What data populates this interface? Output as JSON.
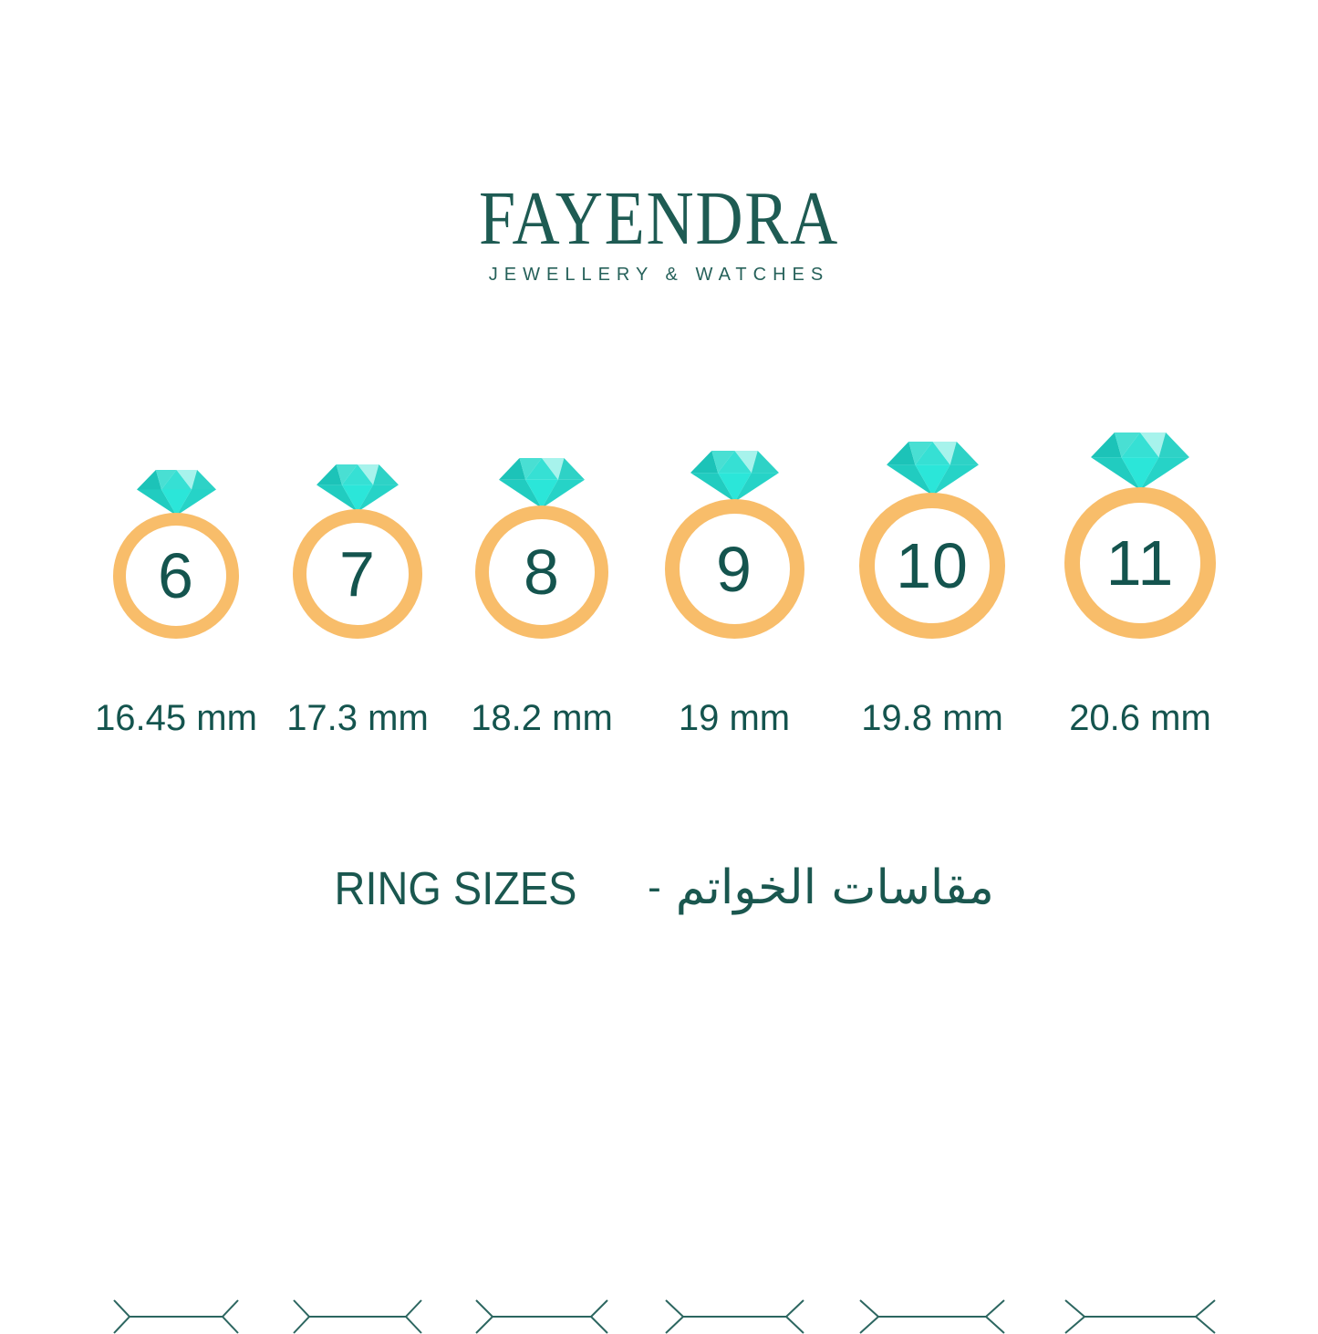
{
  "brand": {
    "name": "FAYENDRA",
    "tagline": "JEWELLERY & WATCHES"
  },
  "rings": [
    {
      "size": "6",
      "diameter_mm": 16.45,
      "diameter_label": "16.45 mm"
    },
    {
      "size": "7",
      "diameter_mm": 17.3,
      "diameter_label": "17.3 mm"
    },
    {
      "size": "8",
      "diameter_mm": 18.2,
      "diameter_label": "18.2 mm"
    },
    {
      "size": "9",
      "diameter_mm": 19,
      "diameter_label": "19 mm"
    },
    {
      "size": "10",
      "diameter_mm": 19.8,
      "diameter_label": "19.8 mm"
    },
    {
      "size": "11",
      "diameter_mm": 20.6,
      "diameter_label": "20.6 mm"
    }
  ],
  "footer_title": {
    "english": "RING SIZES",
    "separator": "-",
    "arabic": "مقاسات الخواتم"
  },
  "colors": {
    "text_teal": "#14544E",
    "logo_teal": "#1E5B53",
    "band_gold": "#F8BD6A",
    "measure_line": "#2C6660",
    "gem_dark": "#1CC3B8",
    "gem_mid_left": "#49DFD3",
    "gem_center": "#36E0D4",
    "gem_lightest": "#A7F3EC",
    "gem_right": "#2ED2C6",
    "gem_pavilion_left": "#21CCC0",
    "gem_pavilion_center": "#2BE6D9",
    "gem_pavilion_right": "#26D3C7"
  }
}
